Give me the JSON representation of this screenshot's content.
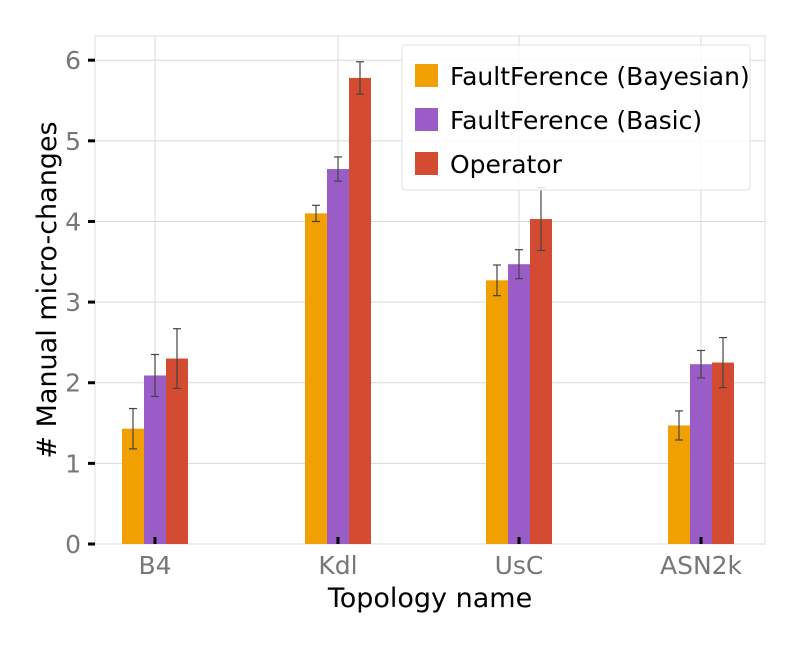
{
  "chart_data": {
    "type": "bar",
    "title": "",
    "xlabel": "Topology name",
    "ylabel": "# Manual micro-changes",
    "categories": [
      "B4",
      "Kdl",
      "UsC",
      "ASN2k"
    ],
    "ylim": [
      0,
      6.3
    ],
    "yticks": [
      0,
      1,
      2,
      3,
      4,
      5,
      6
    ],
    "grid": true,
    "legend_position": "top-right",
    "series": [
      {
        "name": "FaultFerence (Bayesian)",
        "color": "#f0a000",
        "values": [
          1.43,
          4.1,
          3.27,
          1.47
        ],
        "errors": [
          0.25,
          0.1,
          0.19,
          0.18
        ]
      },
      {
        "name": "FaultFerence (Basic)",
        "color": "#9a5cc6",
        "values": [
          2.09,
          4.65,
          3.47,
          2.23
        ],
        "errors": [
          0.26,
          0.15,
          0.18,
          0.17
        ]
      },
      {
        "name": "Operator",
        "color": "#d34c31",
        "values": [
          2.3,
          5.78,
          4.03,
          2.25
        ],
        "errors": [
          0.37,
          0.2,
          0.39,
          0.31
        ]
      }
    ]
  }
}
